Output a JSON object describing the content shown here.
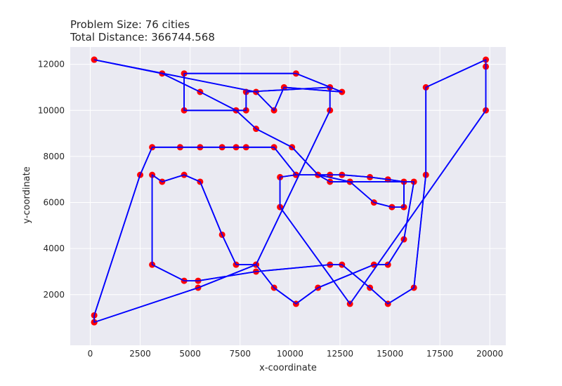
{
  "chart_data": {
    "type": "line",
    "title_lines": [
      "Problem Size: 76 cities",
      "Total Distance: 366744.568"
    ],
    "xlabel": "x-coordinate",
    "ylabel": "y-coordinate",
    "xlim": [
      -1000,
      20800
    ],
    "ylim": [
      -200,
      12750
    ],
    "xticks": [
      0,
      2500,
      5000,
      7500,
      10000,
      12500,
      15000,
      17500,
      20000
    ],
    "yticks": [
      2000,
      4000,
      6000,
      8000,
      10000,
      12000
    ],
    "grid": true,
    "background": "#eaeaf2",
    "grid_color": "#ffffff",
    "line_color": "#0000ff",
    "marker_color": "#ff0000",
    "series": [
      {
        "x": [
          200,
          3600,
          5500,
          7300,
          8300,
          10100,
          11400,
          13000,
          16200,
          15700,
          14900,
          14200,
          11400,
          10300,
          9200,
          8300,
          7300,
          6600,
          5500,
          4700,
          3600,
          3100,
          3100,
          4700,
          5400,
          8300,
          12000,
          12600,
          14000,
          14900,
          16200,
          16800,
          16800,
          19800,
          19800,
          19800,
          13000,
          9500,
          9500,
          10300,
          12000,
          12600,
          14000,
          14900,
          15700,
          15700,
          15100,
          14200,
          13000,
          12000,
          11400,
          10300,
          9200,
          7800,
          7300,
          6600,
          5500,
          4500,
          3100,
          2500,
          200,
          200,
          200,
          5400,
          8300,
          12000,
          12000,
          7800,
          7800,
          4700,
          4700,
          10300,
          12600,
          9700,
          9200,
          8300,
          200
        ],
        "y": [
          12200,
          11600,
          10800,
          10000,
          9200,
          8400,
          7200,
          6900,
          6900,
          4400,
          3300,
          3300,
          2300,
          1600,
          2300,
          3300,
          3300,
          4600,
          6900,
          7200,
          6900,
          7200,
          3300,
          2600,
          2600,
          3000,
          3300,
          3300,
          2300,
          1600,
          2300,
          7200,
          11000,
          12200,
          11900,
          10000,
          1600,
          5800,
          7100,
          7200,
          7200,
          7200,
          7100,
          7000,
          6900,
          5800,
          5800,
          6000,
          6900,
          6900,
          7200,
          7200,
          8400,
          8400,
          8400,
          8400,
          8400,
          8400,
          8400,
          7200,
          1100,
          800,
          800,
          2300,
          3300,
          10000,
          11000,
          10800,
          10000,
          10000,
          11600,
          11600,
          10800,
          11000,
          10000,
          10800,
          12200
        ]
      }
    ]
  }
}
